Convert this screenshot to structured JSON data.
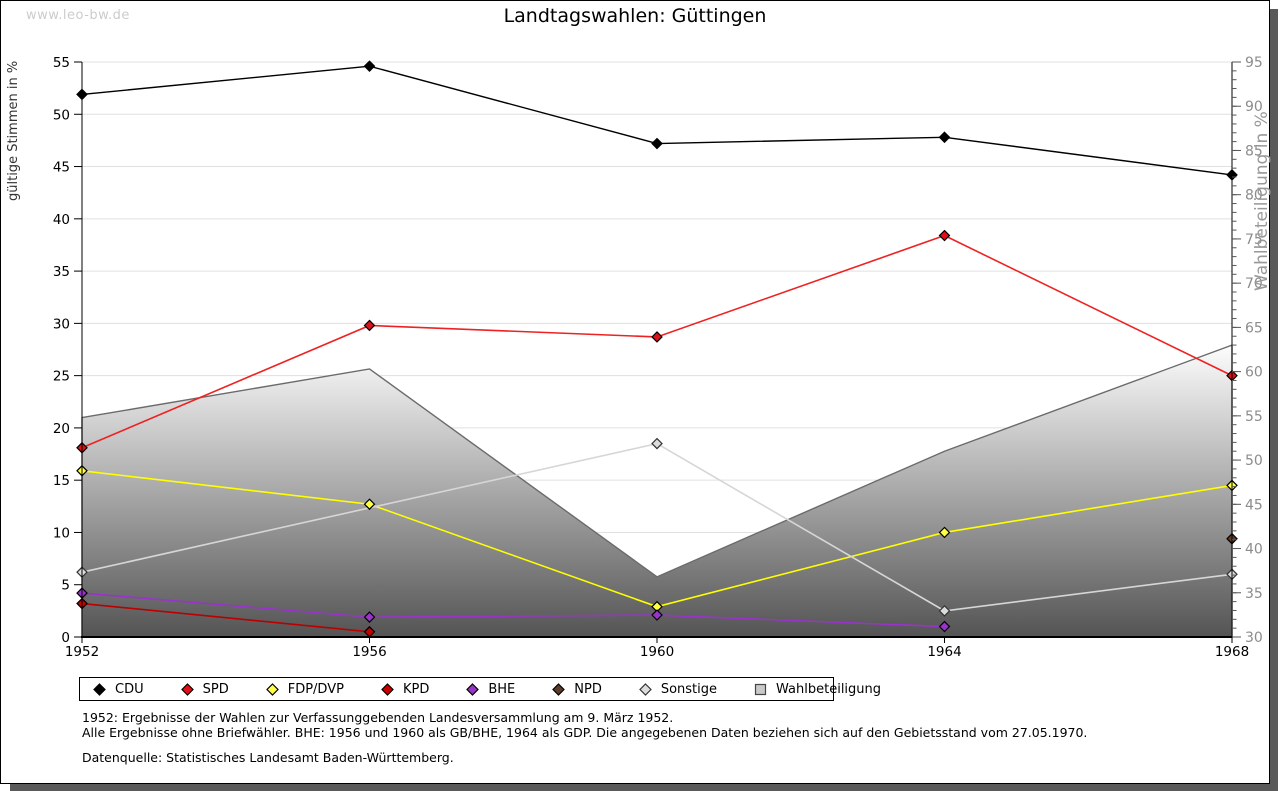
{
  "watermark": "www.leo-bw.de",
  "title": "Landtagswahlen: Güttingen",
  "chart_data": {
    "type": "line",
    "x": [
      1952,
      1956,
      1960,
      1964,
      1968
    ],
    "grid": true,
    "left_axis": {
      "label": "gültige Stimmen in %",
      "min": 0,
      "max": 55,
      "tick_step": 5
    },
    "right_axis": {
      "label": "Wahlbeteiligung in %",
      "min": 30,
      "max": 95,
      "tick_step": 5,
      "minor_step": 1
    },
    "area_series": {
      "name": "Wahlbeteiligung",
      "axis": "right",
      "values": [
        54.8,
        60.3,
        36.8,
        51.0,
        63.0
      ],
      "fill_top": "#fdfdfd",
      "fill_bottom": "#545454",
      "stroke": "#6b6b6b"
    },
    "series": [
      {
        "name": "CDU",
        "color": "#000000",
        "marker_fill": "#000000",
        "marker_stroke": "#000000",
        "values": [
          51.9,
          54.6,
          47.2,
          47.8,
          44.2
        ]
      },
      {
        "name": "SPD",
        "color": "#ee2222",
        "marker_fill": "#dd1119",
        "marker_stroke": "#000000",
        "values": [
          18.1,
          29.8,
          28.7,
          38.4,
          25.0
        ]
      },
      {
        "name": "FDP/DVP",
        "color": "#ffff00",
        "marker_fill": "#ffff44",
        "marker_stroke": "#000000",
        "values": [
          15.9,
          12.7,
          2.9,
          10.0,
          14.5
        ]
      },
      {
        "name": "KPD",
        "color": "#bb0000",
        "marker_fill": "#c40000",
        "marker_stroke": "#000000",
        "values": [
          3.2,
          0.5,
          null,
          null,
          null
        ]
      },
      {
        "name": "BHE",
        "color": "#9933cc",
        "marker_fill": "#9933cc",
        "marker_stroke": "#000000",
        "values": [
          4.2,
          1.9,
          2.1,
          1.0,
          null
        ]
      },
      {
        "name": "NPD",
        "color": "#5e3c28",
        "marker_fill": "#5e3c28",
        "marker_stroke": "#000000",
        "values": [
          null,
          null,
          null,
          null,
          9.4
        ]
      },
      {
        "name": "Sonstige",
        "color": "#d6d6d6",
        "marker_fill": "#dcdcdc",
        "marker_stroke": "#333333",
        "values": [
          6.2,
          null,
          18.5,
          2.5,
          6.0
        ]
      }
    ],
    "legend_area_marker": {
      "fill": "#c9c9c9",
      "stroke": "#444444"
    }
  },
  "footnotes": [
    "1952: Ergebnisse der Wahlen zur Verfassunggebenden Landesversammlung am 9. März 1952.",
    "Alle Ergebnisse ohne Briefwähler. BHE: 1956 und 1960 als GB/BHE, 1964 als GDP. Die angegebenen Daten beziehen sich auf den Gebietsstand vom 27.05.1970."
  ],
  "source": "Datenquelle: Statistisches Landesamt Baden-Württemberg."
}
